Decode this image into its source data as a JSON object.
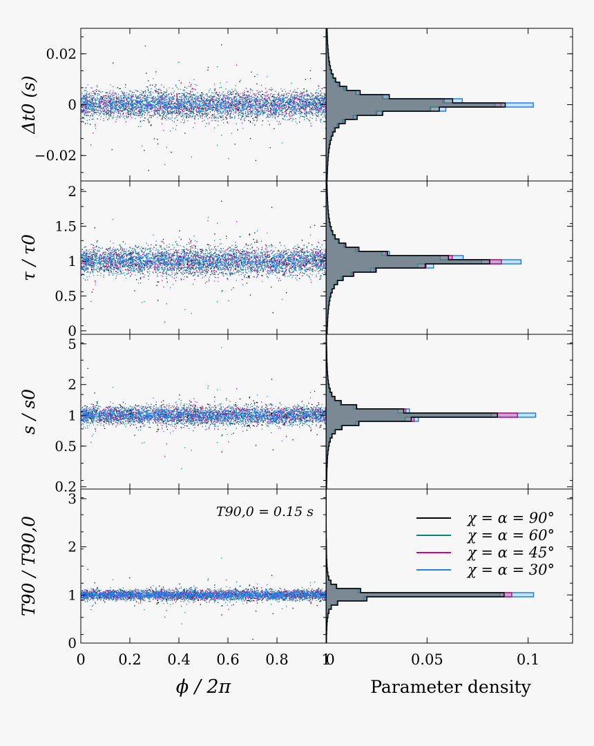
{
  "chart_data": {
    "type": "scatter",
    "layout": "4 rows x 2 columns; left = scatter vs phase, right = marginal histograms",
    "series": [
      {
        "name": "χ = α = 90°",
        "color": "#000000",
        "fill": "#6f7f86"
      },
      {
        "name": "χ = α = 60°",
        "color": "#00897b",
        "fill": "#55857e"
      },
      {
        "name": "χ = α = 45°",
        "color": "#d4008a",
        "fill": "#c27fb0"
      },
      {
        "name": "χ = α = 30°",
        "color": "#1e7ff2",
        "fill": "#bde0ff"
      }
    ],
    "annotation": "T90,0 = 0.15 s",
    "xaxis_left": {
      "label": "ϕ / 2π",
      "range": [
        0,
        1
      ],
      "ticks": [
        0,
        0.2,
        0.4,
        0.6,
        0.8,
        1
      ],
      "tick_labels": [
        "0",
        "0.2",
        "0.4",
        "0.6",
        "0.8",
        "1"
      ]
    },
    "xaxis_right": {
      "label": "Parameter density",
      "range": [
        0,
        0.122
      ],
      "ticks": [
        0,
        0.05,
        0.1
      ],
      "tick_labels": [
        "0",
        "0.05",
        "0.1"
      ]
    },
    "rows": [
      {
        "ylabel": "Δt0 (s)",
        "scale": "linear",
        "ylim": [
          -0.03,
          0.03
        ],
        "ticks": [
          -0.02,
          0,
          0.02
        ],
        "tick_labels": [
          "−0.02",
          "0",
          "0.02"
        ],
        "center": 0,
        "spread": 0.0026,
        "hist_peak": [
          0.089,
          0.084,
          0.087,
          0.103
        ]
      },
      {
        "ylabel": "τ / τ0",
        "scale": "linear",
        "ylim": [
          -0.05,
          2.15
        ],
        "ticks": [
          0,
          0.5,
          1,
          1.5,
          2
        ],
        "tick_labels": [
          "0",
          "0.5",
          "1",
          "1.5",
          "2"
        ],
        "center": 1,
        "spread": 0.095,
        "hist_peak": [
          0.082,
          0.078,
          0.088,
          0.098
        ]
      },
      {
        "ylabel": "s / s0",
        "scale": "log",
        "ylim": [
          0.19,
          6.2
        ],
        "ticks": [
          0.2,
          0.5,
          1,
          2,
          5
        ],
        "tick_labels": [
          "0.2",
          "0.5",
          "1",
          "2",
          "5"
        ],
        "center": 1,
        "spread": 0.1,
        "hist_peak": [
          0.085,
          0.082,
          0.095,
          0.104
        ]
      },
      {
        "ylabel": "T90 / T90,0",
        "scale": "linear",
        "ylim": [
          0,
          3.2
        ],
        "ticks": [
          0,
          1,
          2,
          3
        ],
        "tick_labels": [
          "0",
          "1",
          "2",
          "3"
        ],
        "center": 1,
        "spread": 0.05,
        "hist_peak": [
          0.089,
          0.087,
          0.093,
          0.104
        ]
      }
    ]
  }
}
